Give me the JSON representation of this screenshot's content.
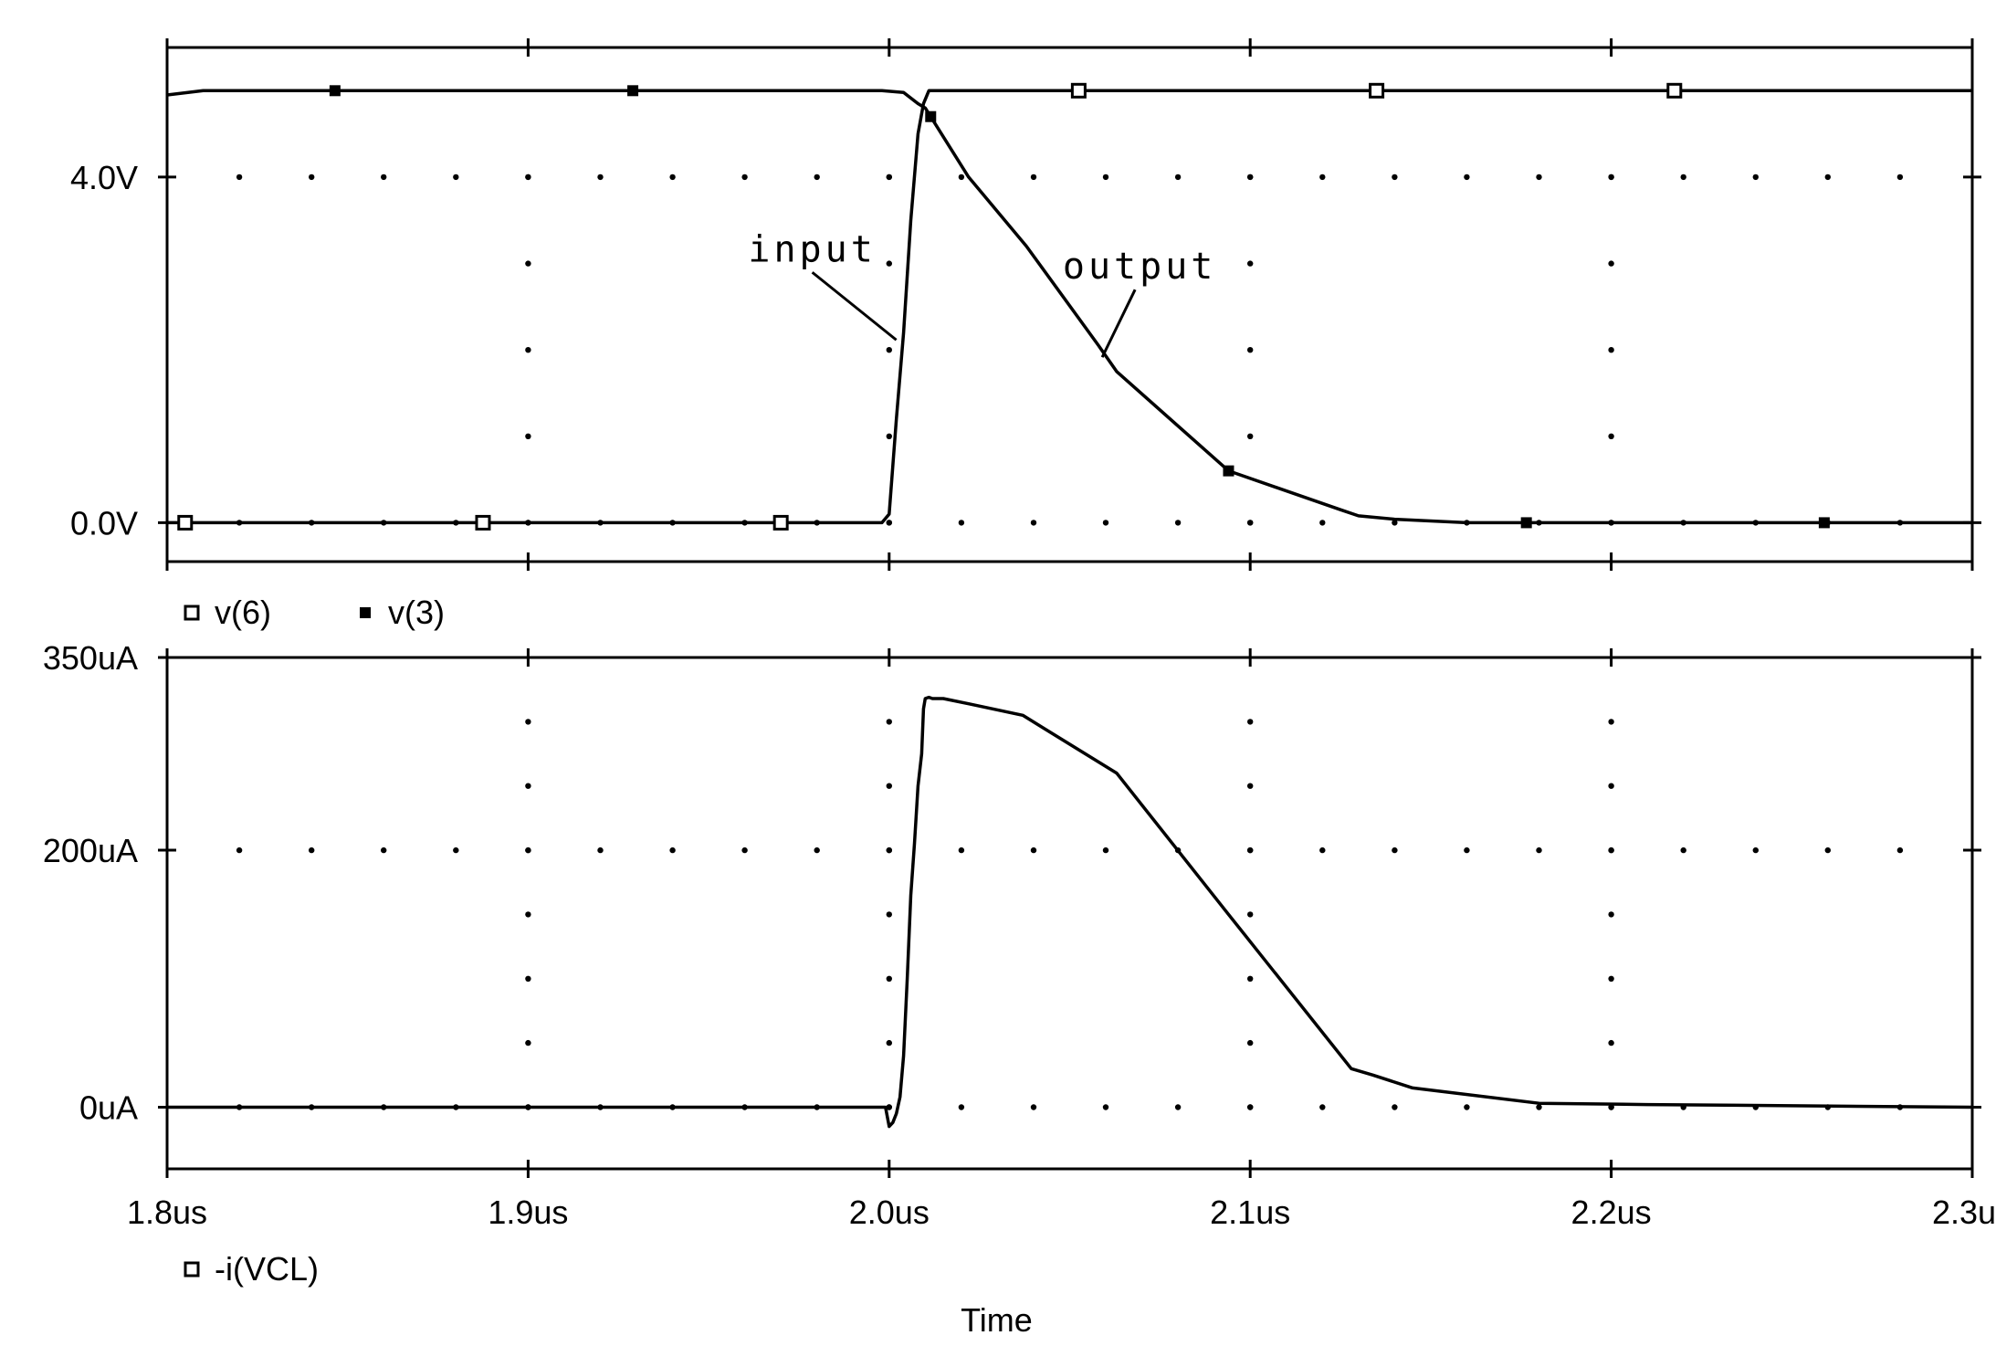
{
  "chart_data": [
    {
      "type": "line",
      "panel": "top",
      "x_unit": "us",
      "xlim": [
        1.8,
        2.3
      ],
      "ylim": [
        -0.45,
        5.5
      ],
      "y_ticks": [
        {
          "value": 0.0,
          "label": "0.0V"
        },
        {
          "value": 4.0,
          "label": "4.0V"
        }
      ],
      "grid": "dotted",
      "legend": [
        {
          "name": "v(6)",
          "marker": "open-square"
        },
        {
          "name": "v(3)",
          "marker": "filled-square"
        }
      ],
      "annotations": [
        {
          "text": "input",
          "series": "v(6)",
          "x": 2.004,
          "y": 2.2
        },
        {
          "text": "output",
          "series": "v(3)",
          "x": 2.058,
          "y": 2.0
        }
      ],
      "series": [
        {
          "name": "v(6)",
          "marker": "open-square",
          "x": [
            1.8,
            1.998,
            2.0,
            2.002,
            2.004,
            2.006,
            2.008,
            2.0095,
            2.011,
            2.3
          ],
          "y": [
            0.0,
            0.0,
            0.1,
            1.2,
            2.2,
            3.5,
            4.5,
            4.85,
            5.0,
            5.0
          ]
        },
        {
          "name": "v(3)",
          "marker": "filled-square",
          "x": [
            1.8,
            1.81,
            1.85,
            1.998,
            2.004,
            2.008,
            2.01,
            2.022,
            2.038,
            2.058,
            2.063,
            2.094,
            2.125,
            2.13,
            2.14,
            2.16,
            2.3
          ],
          "y": [
            4.95,
            5.0,
            5.0,
            5.0,
            4.98,
            4.85,
            4.8,
            4.0,
            3.2,
            2.05,
            1.75,
            0.6,
            0.15,
            0.08,
            0.04,
            0.0,
            0.0
          ]
        }
      ]
    },
    {
      "type": "line",
      "panel": "bottom",
      "x_unit": "us",
      "xlim": [
        1.8,
        2.3
      ],
      "ylim": [
        -48,
        350
      ],
      "x_ticks": [
        {
          "value": 1.8,
          "label": "1.8us"
        },
        {
          "value": 1.9,
          "label": "1.9us"
        },
        {
          "value": 2.0,
          "label": "2.0us"
        },
        {
          "value": 2.1,
          "label": "2.1us"
        },
        {
          "value": 2.2,
          "label": "2.2us"
        },
        {
          "value": 2.3,
          "label": "2.3us"
        }
      ],
      "y_ticks": [
        {
          "value": 0,
          "label": "0uA"
        },
        {
          "value": 200,
          "label": "200uA"
        },
        {
          "value": 350,
          "label": "350uA"
        }
      ],
      "xlabel": "Time",
      "grid": "dotted",
      "legend": [
        {
          "name": "-i(VCL)",
          "marker": "open-square"
        }
      ],
      "series": [
        {
          "name": "-i(VCL)",
          "x": [
            1.8,
            1.999,
            2.0,
            2.001,
            2.002,
            2.003,
            2.004,
            2.005,
            2.006,
            2.007,
            2.008,
            2.009,
            2.0095,
            2.01,
            2.011,
            2.012,
            2.015,
            2.022,
            2.037,
            2.063,
            2.094,
            2.128,
            2.134,
            2.145,
            2.18,
            2.21,
            2.3
          ],
          "y": [
            0,
            0,
            -15,
            -12,
            -5,
            8,
            40,
            100,
            165,
            205,
            250,
            275,
            310,
            318,
            319,
            318,
            318,
            314,
            305,
            260,
            150,
            30,
            25,
            15,
            3,
            2,
            0
          ]
        }
      ]
    }
  ]
}
